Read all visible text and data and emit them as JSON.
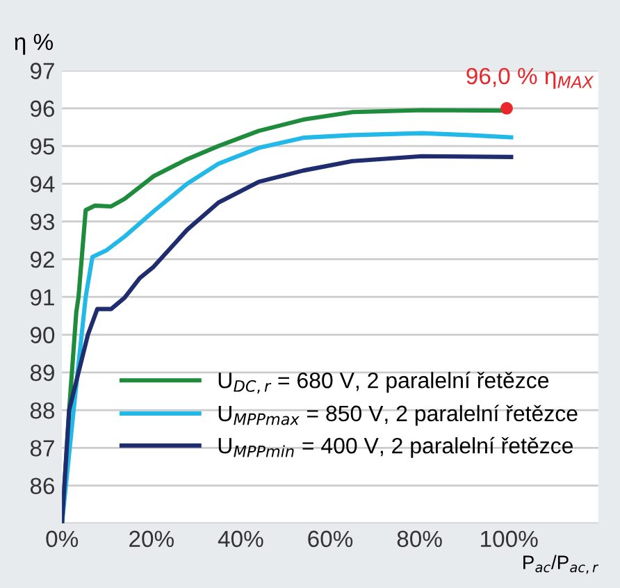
{
  "chart_data": {
    "type": "line",
    "ylabel": "η %",
    "xlabel": "P$_{ac}$/P$_{ac,r}$",
    "xlim": [
      0,
      120
    ],
    "xticks": [
      {
        "value": 0,
        "label": "0%"
      },
      {
        "value": 20,
        "label": "20%"
      },
      {
        "value": 40,
        "label": "40%"
      },
      {
        "value": 60,
        "label": "60%"
      },
      {
        "value": 80,
        "label": "80%"
      },
      {
        "value": 100,
        "label": "100%"
      }
    ],
    "ylim": [
      85,
      97
    ],
    "yticks": [
      {
        "value": 85,
        "label": null
      },
      86,
      87,
      88,
      89,
      90,
      91,
      92,
      93,
      94,
      95,
      96,
      97
    ],
    "grid": "y",
    "legend": "bottom right",
    "series": [
      {
        "name": "U$_{DC,r}$ = 680 V, 2 paralelní řetězce",
        "color": "#1e8c3c",
        "x": [
          0,
          1.6,
          3.2,
          3.7,
          5.3,
          7.4,
          11,
          14,
          20.5,
          28,
          35,
          44,
          54,
          65,
          80.5,
          99.5
        ],
        "values": [
          85,
          88,
          90.6,
          91,
          93.3,
          93.42,
          93.4,
          93.6,
          94.2,
          94.65,
          95.0,
          95.4,
          95.7,
          95.9,
          95.95,
          95.94
        ]
      },
      {
        "name": "U$_{MPPmax}$ = 850 V, 2 paralelní řetězce",
        "color": "#22b8e8",
        "x": [
          0,
          2.6,
          5.3,
          6.8,
          10,
          14,
          20.5,
          28,
          35,
          44,
          54,
          65,
          80.5,
          91,
          100.5
        ],
        "values": [
          85,
          88,
          91,
          92.06,
          92.24,
          92.6,
          93.27,
          94.0,
          94.53,
          94.95,
          95.22,
          95.29,
          95.34,
          95.29,
          95.23
        ]
      },
      {
        "name": "U$_{MPPmin}$ = 400 V, 2 paralelní řetězce",
        "color": "#1f2d6e",
        "x": [
          0,
          1.6,
          5.8,
          7.9,
          11,
          14,
          17.4,
          20.5,
          28,
          35,
          44,
          54,
          65,
          80.5,
          100.5
        ],
        "values": [
          85,
          88,
          90.0,
          90.68,
          90.68,
          90.98,
          91.5,
          91.8,
          92.78,
          93.5,
          94.05,
          94.35,
          94.6,
          94.73,
          94.71
        ]
      },
      {
        "type": "scatter",
        "color": "#e8262b",
        "x": [
          99.5
        ],
        "values": [
          96.0
        ],
        "marker": "circle"
      }
    ],
    "annotations": [
      {
        "text": "96,0 % η$_{MAX}$",
        "x": 99.5,
        "y": 96.0
      }
    ]
  }
}
